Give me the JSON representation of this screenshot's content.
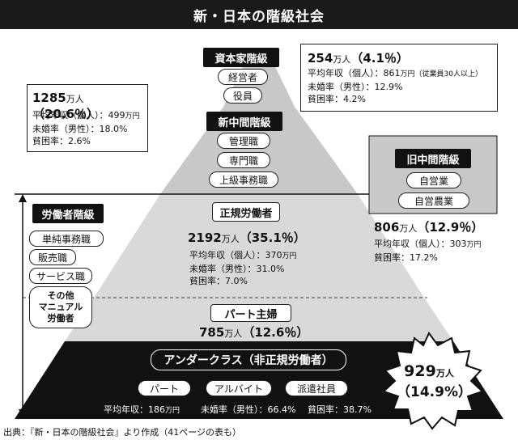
{
  "title": "新・日本の階級社会",
  "capitalist": {
    "tag": "資本家階級",
    "jobs": [
      "経営者",
      "役員"
    ],
    "count": "254",
    "unit": "万人",
    "pct": "（4.1％）",
    "income_label": "平均年収（個人）：861",
    "income_unit": "万円（従業員30人以上）",
    "unmarried": "未婚率（男性）：12.9%",
    "poverty": "貧困率：4.2%"
  },
  "new_middle": {
    "tag": "新中間階級",
    "jobs": [
      "管理職",
      "専門職",
      "上級事務職"
    ],
    "count": "1285",
    "unit": "万人",
    "pct": "（20.6％）",
    "income_label": "平均年収（個人）：499",
    "income_unit": "万円",
    "unmarried": "未婚率（男性）：18.0%",
    "poverty": "貧困率：2.6%"
  },
  "old_middle": {
    "tag": "旧中間階級",
    "jobs": [
      "自営業",
      "自営農業"
    ],
    "count": "806",
    "unit": "万人",
    "pct": "（12.9％）",
    "income_label": "平均年収（個人）：303",
    "income_unit": "万円",
    "poverty": "貧困率：17.2%"
  },
  "working": {
    "tag": "労働者階級",
    "jobs": [
      "単純事務職",
      "販売職",
      "サービス職",
      "その他\nマニュアル\n労働者"
    ],
    "regular": {
      "tag": "正規労働者",
      "count": "2192",
      "unit": "万人",
      "pct": "（35.1％）",
      "income_label": "平均年収（個人）：370",
      "income_unit": "万円",
      "unmarried": "未婚率（男性）：31.0%",
      "poverty": "貧困率：7.0%"
    },
    "part_housewife": {
      "tag": "パート主婦",
      "count": "785",
      "unit": "万人",
      "pct": "（12.6％）"
    }
  },
  "underclass": {
    "tag": "アンダークラス（非正規労働者）",
    "jobs": [
      "パート",
      "アルバイト",
      "派遣社員"
    ],
    "income_label": "平均年収：186",
    "income_unit": "万円",
    "unmarried": "未婚率（男性）：66.4%",
    "poverty": "貧困率：38.7%",
    "count": "929",
    "unit": "万人",
    "pct": "（14.9%）"
  },
  "source": "出典：『新・日本の階級社会』より作成（41ページの表も）",
  "colors": {
    "dark": "#111111",
    "gray": "#c8c8c8",
    "light_gray": "#d9d9d9"
  }
}
